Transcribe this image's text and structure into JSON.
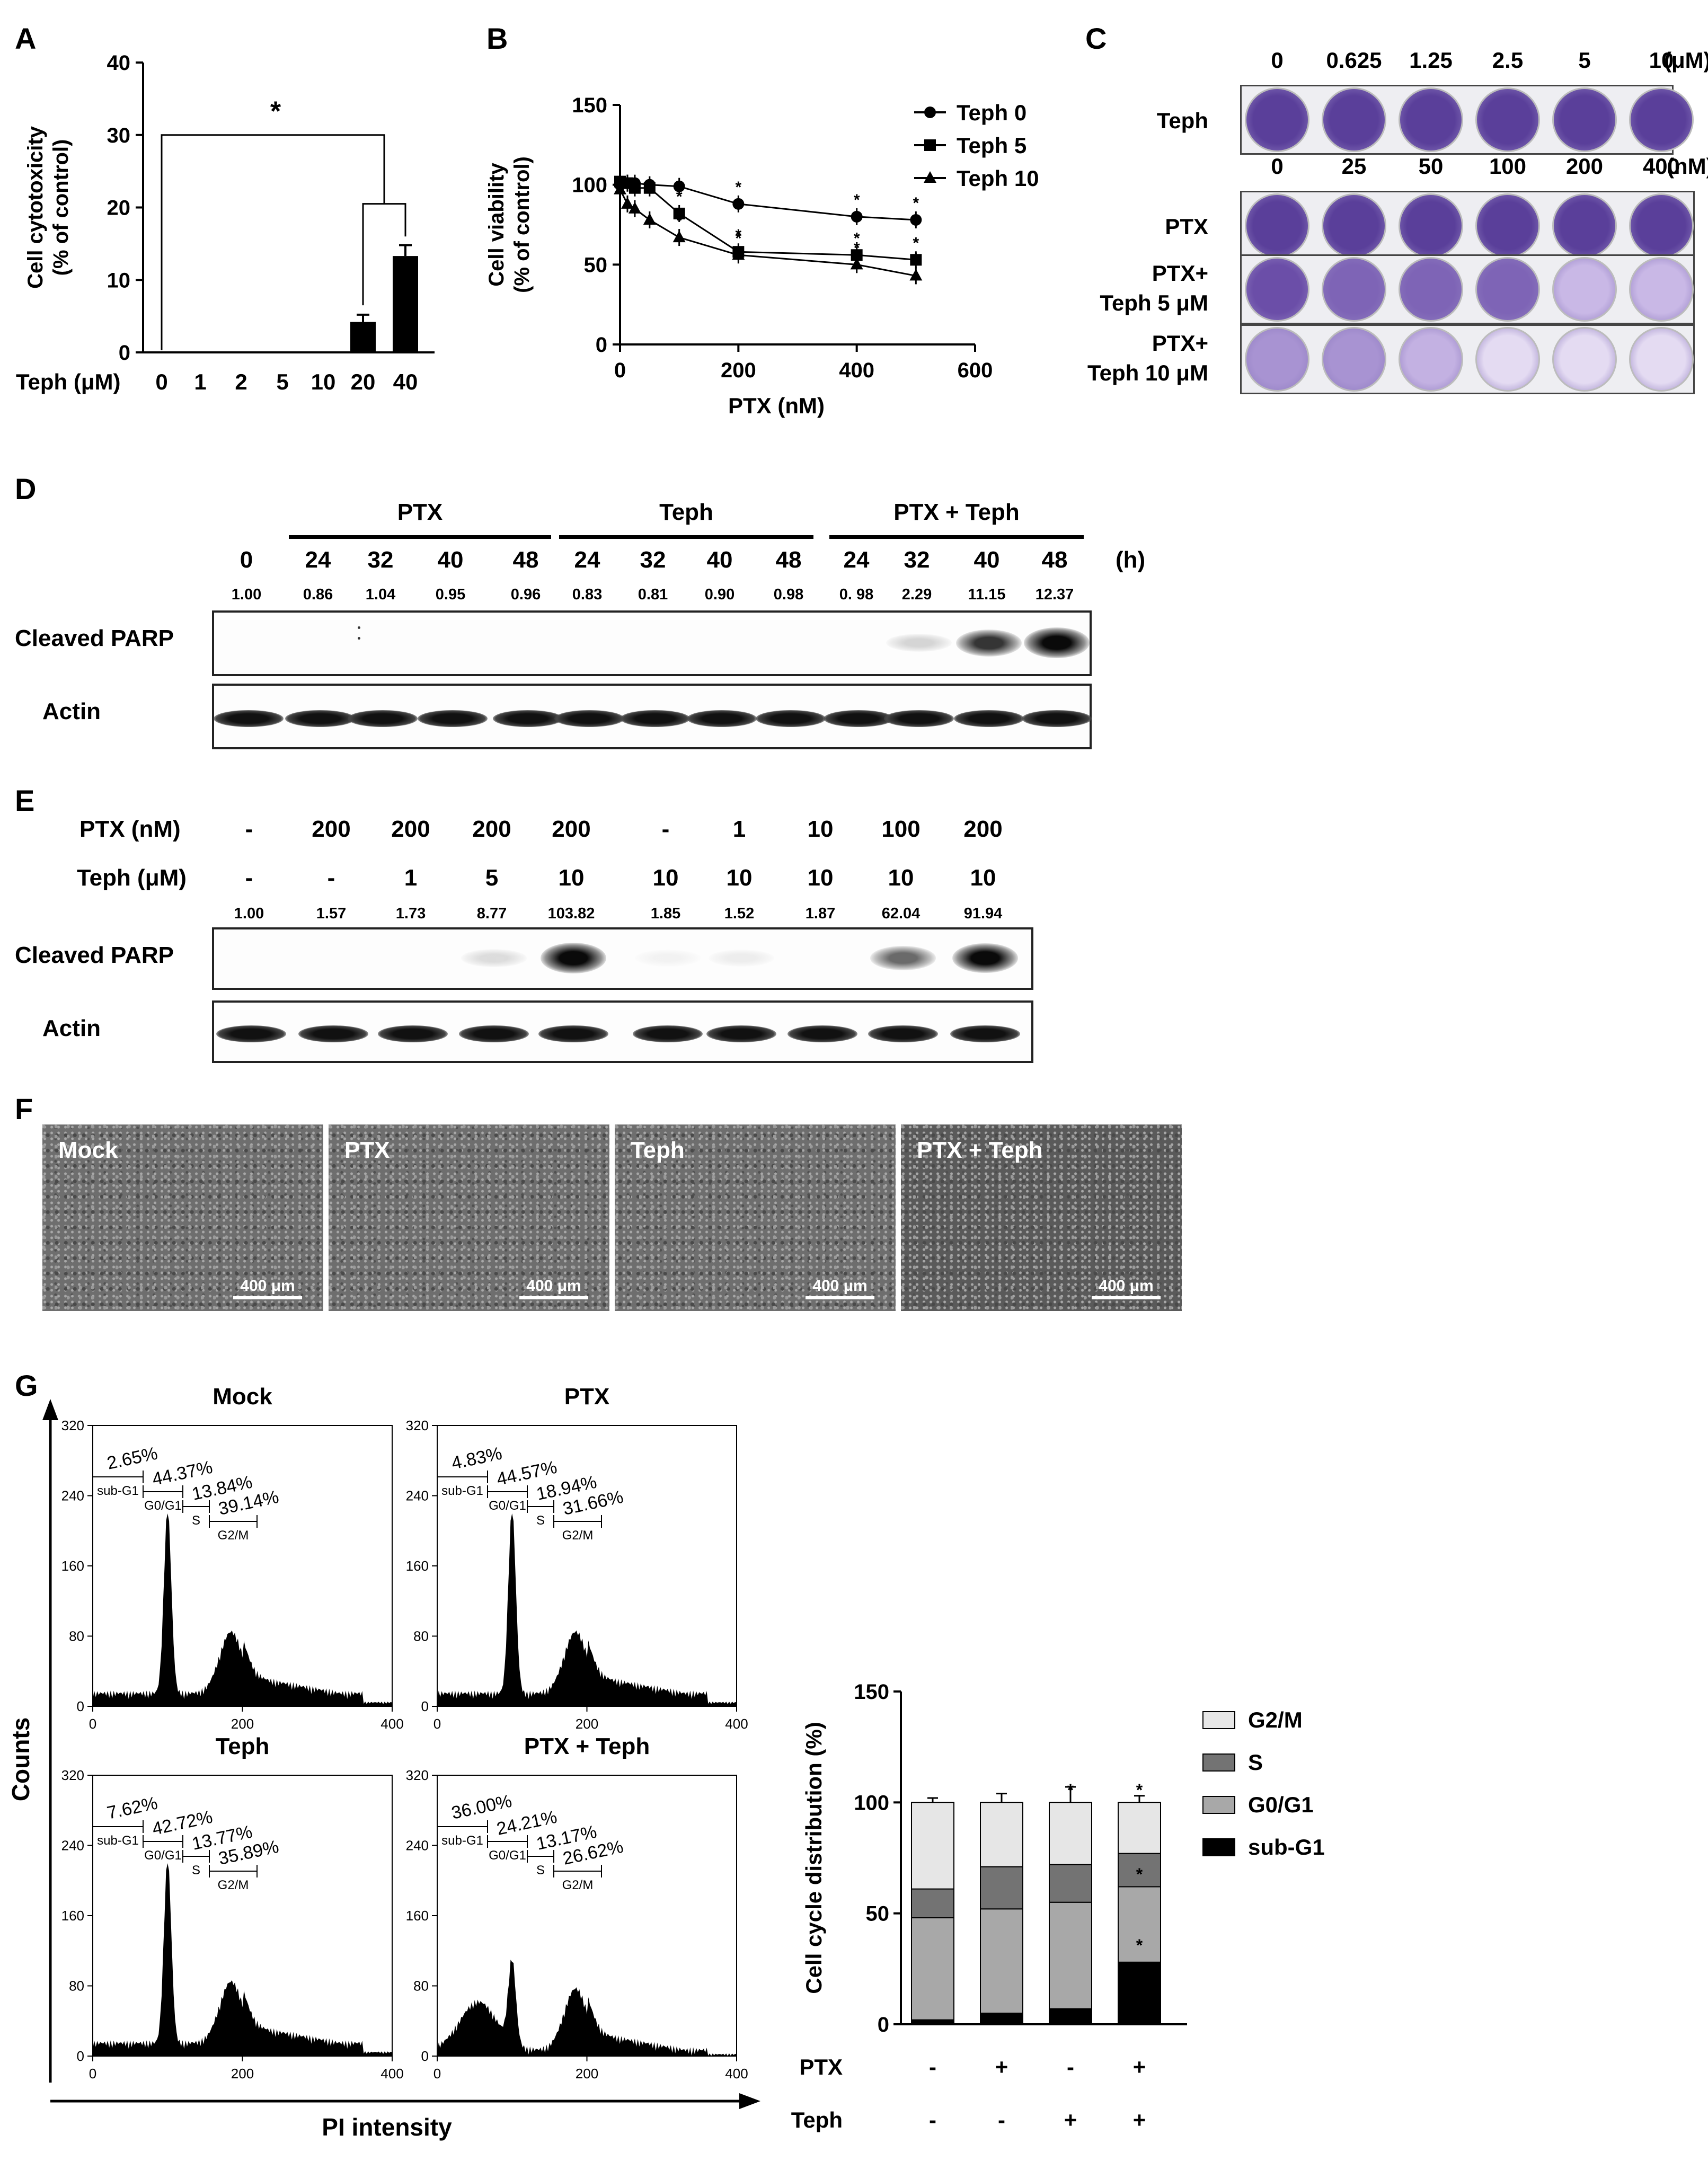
{
  "panels": {
    "A": "A",
    "B": "B",
    "C": "C",
    "D": "D",
    "E": "E",
    "F": "F",
    "G": "G"
  },
  "colors": {
    "purple": "#5a3f9a",
    "light_purple": "#c9b8e6",
    "blot_band": "#111111"
  },
  "chart_data": [
    {
      "id": "A",
      "type": "bar",
      "ylabel": "Cell cytotoxicity\n(% of control)",
      "xlabel_prefix": "Teph (μM)",
      "categories": [
        "0",
        "1",
        "2",
        "5",
        "10",
        "20",
        "40"
      ],
      "values": [
        0,
        0,
        0,
        0,
        0,
        4.2,
        13.3
      ],
      "errors": [
        0,
        0,
        0,
        0,
        0,
        1.0,
        1.5
      ],
      "ylim": [
        0,
        40
      ],
      "yticks": [
        0,
        10,
        20,
        30,
        40
      ],
      "significance": "*"
    },
    {
      "id": "B",
      "type": "line",
      "ylabel": "Cell viability\n(% of control)",
      "xlabel": "PTX (nM)",
      "xlim": [
        0,
        600
      ],
      "xticks": [
        0,
        200,
        400,
        600
      ],
      "ylim": [
        0,
        150
      ],
      "yticks": [
        0,
        50,
        100,
        150
      ],
      "x": [
        0,
        12.5,
        25,
        50,
        100,
        200,
        400,
        500
      ],
      "series": [
        {
          "name": "Teph 0",
          "marker": "circle",
          "values": [
            100,
            101,
            101,
            100,
            99,
            88,
            80,
            78
          ]
        },
        {
          "name": "Teph 5",
          "marker": "square",
          "values": [
            102,
            101,
            98,
            98,
            82,
            58,
            56,
            53
          ]
        },
        {
          "name": "Teph 10",
          "marker": "triangle",
          "values": [
            97,
            88,
            85,
            78,
            67,
            56,
            50,
            43
          ]
        }
      ],
      "star_mark": "*"
    },
    {
      "id": "G",
      "type": "bar",
      "stacked": true,
      "ylabel": "Cell cycle distribution (%)",
      "ylim": [
        0,
        150
      ],
      "yticks": [
        0,
        50,
        100,
        150
      ],
      "groups": [
        {
          "ptx": "-",
          "teph": "-"
        },
        {
          "ptx": "+",
          "teph": "-"
        },
        {
          "ptx": "-",
          "teph": "+"
        },
        {
          "ptx": "+",
          "teph": "+"
        }
      ],
      "series": [
        {
          "name": "sub-G1",
          "color": "#000000",
          "values": [
            2,
            5,
            7,
            28
          ],
          "errors": [
            1,
            1,
            2,
            7
          ]
        },
        {
          "name": "G0/G1",
          "color": "#a8a8a8",
          "values": [
            46,
            47,
            48,
            34
          ],
          "errors": [
            1,
            4,
            11,
            16
          ]
        },
        {
          "name": "S",
          "color": "#737373",
          "values": [
            13,
            19,
            17,
            15
          ],
          "errors": [
            1,
            6,
            7,
            2
          ]
        },
        {
          "name": "G2/M",
          "color": "#e6e6e6",
          "values": [
            39,
            29,
            28,
            23
          ],
          "errors": [
            2,
            4,
            7,
            3
          ]
        }
      ],
      "row_labels": [
        "PTX",
        "Teph"
      ],
      "star_mark": "*"
    }
  ],
  "C": {
    "conc_teph": [
      "0",
      "0.625",
      "1.25",
      "2.5",
      "5",
      "10"
    ],
    "unit_teph": "(μM)",
    "conc_ptx": [
      "0",
      "25",
      "50",
      "100",
      "200",
      "400"
    ],
    "unit_ptx": "(nM)",
    "rows": [
      {
        "label1": "Teph",
        "label2": ""
      },
      {
        "label1": "PTX",
        "label2": ""
      },
      {
        "label1": "PTX+",
        "label2": "Teph 5 μM"
      },
      {
        "label1": "PTX+",
        "label2": "Teph 10 μM"
      }
    ]
  },
  "D": {
    "groups": [
      "PTX",
      "Teph",
      "PTX + Teph"
    ],
    "times": [
      "0",
      "24",
      "32",
      "40",
      "48",
      "24",
      "32",
      "40",
      "48",
      "24",
      "32",
      "40",
      "48"
    ],
    "unit": "(h)",
    "quant": [
      "1.00",
      "0.86",
      "1.04",
      "0.95",
      "0.96",
      "0.83",
      "0.81",
      "0.90",
      "0.98",
      "0. 98",
      "2.29",
      "11.15",
      "12.37"
    ],
    "parp": [
      0,
      0,
      0,
      0,
      0,
      0,
      0,
      0,
      0,
      0,
      0.15,
      0.75,
      1.0
    ],
    "rows": [
      "Cleaved PARP",
      "Actin"
    ]
  },
  "E": {
    "ptx_label": "PTX (nM)",
    "teph_label": "Teph (μM)",
    "ptx": [
      "-",
      "200",
      "200",
      "200",
      "200",
      "-",
      "1",
      "10",
      "100",
      "200"
    ],
    "teph": [
      "-",
      "-",
      "1",
      "5",
      "10",
      "10",
      "10",
      "10",
      "10",
      "10"
    ],
    "quant": [
      "1.00",
      "1.57",
      "1.73",
      "8.77",
      "103.82",
      "1.85",
      "1.52",
      "1.87",
      "62.04",
      "91.94"
    ],
    "parp": [
      0,
      0,
      0,
      0.12,
      1.0,
      0.04,
      0.06,
      0,
      0.55,
      0.95
    ],
    "rows": [
      "Cleaved PARP",
      "Actin"
    ]
  },
  "F": {
    "labels": [
      "Mock",
      "PTX",
      "Teph",
      "PTX + Teph"
    ],
    "scale": "400 μm"
  },
  "G_hist": {
    "titles": [
      "Mock",
      "PTX",
      "Teph",
      "PTX + Teph"
    ],
    "ylabel": "Counts",
    "xlabel": "PI intensity",
    "yticks": [
      "0",
      "80",
      "160",
      "240",
      "320"
    ],
    "xticks": [
      "0",
      "200",
      "400"
    ],
    "gates": [
      "sub-G1",
      "G0/G1",
      "S",
      "G2/M"
    ],
    "percents": [
      [
        "2.65%",
        "44.37%",
        "13.84%",
        "39.14%"
      ],
      [
        "4.83%",
        "44.57%",
        "18.94%",
        "31.66%"
      ],
      [
        "7.62%",
        "42.72%",
        "13.77%",
        "35.89%"
      ],
      [
        "36.00%",
        "24.21%",
        "13.17%",
        "26.62%"
      ]
    ]
  }
}
